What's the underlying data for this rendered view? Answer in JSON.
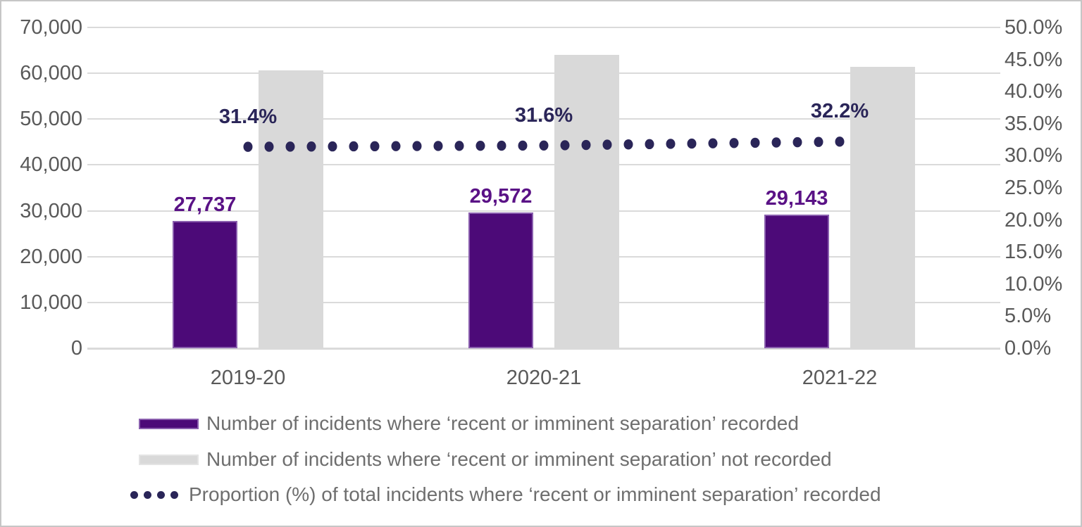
{
  "frame": {
    "background": "#ffffff",
    "border_color": "#c6c6c6"
  },
  "chart_data": {
    "type": "combo (bar + dotted line, dual axis)",
    "categories": [
      "2019-20",
      "2020-21",
      "2021-22"
    ],
    "series": [
      {
        "name": "Number of incidents where ‘recent or imminent separation’ recorded",
        "type": "bar",
        "axis": "left",
        "color": "#4c0a78",
        "border_color": "#8a5fae",
        "values": [
          27737,
          29572,
          29143
        ],
        "data_labels": [
          "27,737",
          "29,572",
          "29,143"
        ],
        "label_color": "#5a1286"
      },
      {
        "name": "Number of incidents where ‘recent or imminent separation’ not recorded",
        "type": "bar",
        "axis": "left",
        "color": "#d9d9d9",
        "values": [
          60597,
          64010,
          61363
        ],
        "data_labels": []
      },
      {
        "name": "Proportion (%) of total incidents where ‘recent or imminent separation’ recorded",
        "type": "dotted-line",
        "axis": "right",
        "color": "#2a2558",
        "values": [
          31.4,
          31.6,
          32.2
        ],
        "data_labels": [
          "31.4%",
          "31.6%",
          "32.2%"
        ],
        "label_color": "#2a2558"
      }
    ],
    "left_axis": {
      "min": 0,
      "max": 70000,
      "step": 10000,
      "tick_labels": [
        "70,000",
        "60,000",
        "50,000",
        "40,000",
        "30,000",
        "20,000",
        "10,000",
        "0"
      ],
      "text_color": "#595959"
    },
    "right_axis": {
      "min": 0,
      "max": 50,
      "step": 5,
      "tick_labels": [
        "50.0%",
        "45.0%",
        "40.0%",
        "35.0%",
        "30.0%",
        "25.0%",
        "20.0%",
        "15.0%",
        "10.0%",
        "5.0%",
        "0.0%"
      ],
      "text_color": "#595959"
    },
    "grid": {
      "show": true,
      "color": "#dadada"
    },
    "legend": {
      "position": "bottom-left"
    }
  }
}
